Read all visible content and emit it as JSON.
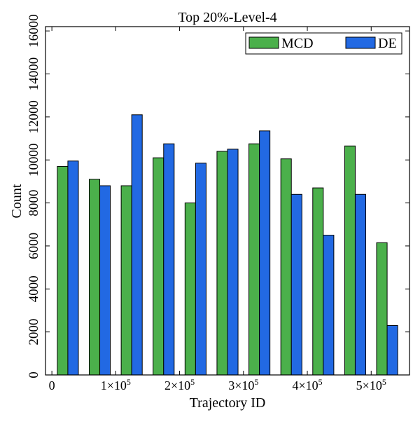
{
  "chart_data": {
    "type": "bar",
    "title": "Top 20%-Level-4",
    "xlabel": "Trajectory ID",
    "ylabel": "Count",
    "ylim": [
      0,
      16200
    ],
    "xlim": [
      -10000,
      560000
    ],
    "yticks": [
      0,
      2000,
      4000,
      6000,
      8000,
      10000,
      12000,
      14000,
      16000
    ],
    "ytick_labels": [
      "0",
      "2000",
      "4000",
      "6000",
      "8000",
      "10000",
      "12000",
      "14000",
      "16000"
    ],
    "xticks": [
      0,
      100000,
      200000,
      300000,
      400000,
      500000
    ],
    "xtick_labels": [
      {
        "base": "0",
        "exp": ""
      },
      {
        "base": "1×10",
        "exp": "5"
      },
      {
        "base": "2×10",
        "exp": "5"
      },
      {
        "base": "3×10",
        "exp": "5"
      },
      {
        "base": "4×10",
        "exp": "5"
      },
      {
        "base": "5×10",
        "exp": "5"
      }
    ],
    "bin_centers": [
      25000,
      75000,
      125000,
      175000,
      225000,
      275000,
      325000,
      375000,
      425000,
      475000,
      525000
    ],
    "bar_width": 16500,
    "legend_position": "top-right",
    "series": [
      {
        "name": "MCD",
        "color": "#4bb04b",
        "values": [
          9700,
          9100,
          8800,
          10100,
          8000,
          10400,
          10750,
          10050,
          8700,
          10650,
          6150
        ]
      },
      {
        "name": "DE",
        "color": "#2269e3",
        "values": [
          9950,
          8800,
          12100,
          10750,
          9850,
          10500,
          11350,
          8400,
          6500,
          8400,
          2300
        ]
      }
    ]
  }
}
